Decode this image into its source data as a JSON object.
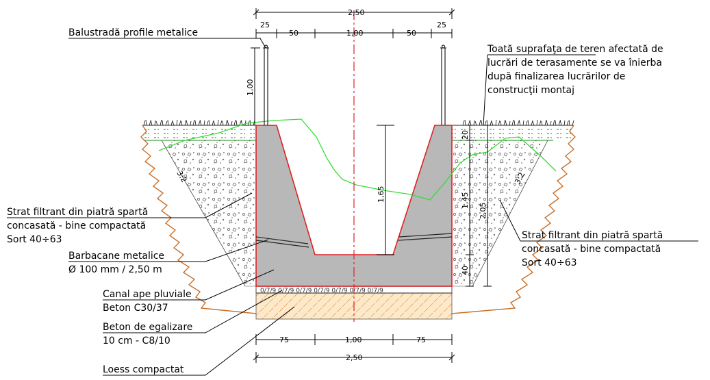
{
  "dimensions": {
    "top_total": "2,50",
    "top_parts": [
      "25",
      "50",
      "1,00",
      "50",
      "25"
    ],
    "bottom_parts": [
      "75",
      "1,00",
      "75"
    ],
    "bottom_total": "2,50",
    "railing_height": "1,00",
    "inner_depth": "1,65",
    "side_20": "20",
    "side_145": "1,45",
    "side_205": "2,05",
    "side_40": "40",
    "slope_left": "3:2",
    "slope_right": "3:2"
  },
  "labels": {
    "railing": "Balustradă profile metalice",
    "grass_note": [
      "Toată suprafaţa de teren afectată de",
      "lucrări de terasamente se va înierba",
      "după finalizarea lucrărilor de",
      "construcţii montaj"
    ],
    "filter_left": [
      "Strat filtrant din piatră spartă",
      "concasată - bine compactată",
      "Sort 40÷63"
    ],
    "filter_right": [
      "Strat filtrant din piatră spartă",
      "concasată - bine compactată",
      "Sort 40÷63"
    ],
    "weepholes": [
      "Barbacane metalice",
      "Ø 100 mm / 2,50 m"
    ],
    "channel": [
      "Canal ape pluviale",
      "Beton C30/37"
    ],
    "levelling": [
      "Beton de egalizare",
      "10 cm -  C8/10"
    ],
    "loess": "Loess compactat"
  },
  "colors": {
    "concrete": "#b8b8b8",
    "concrete_edge": "#e02020",
    "axis": "#e02020",
    "grass": "#1a8a1a",
    "terrain": "#33dd33",
    "soil": "#c8702a",
    "loess_fill": "#fde8c8"
  }
}
